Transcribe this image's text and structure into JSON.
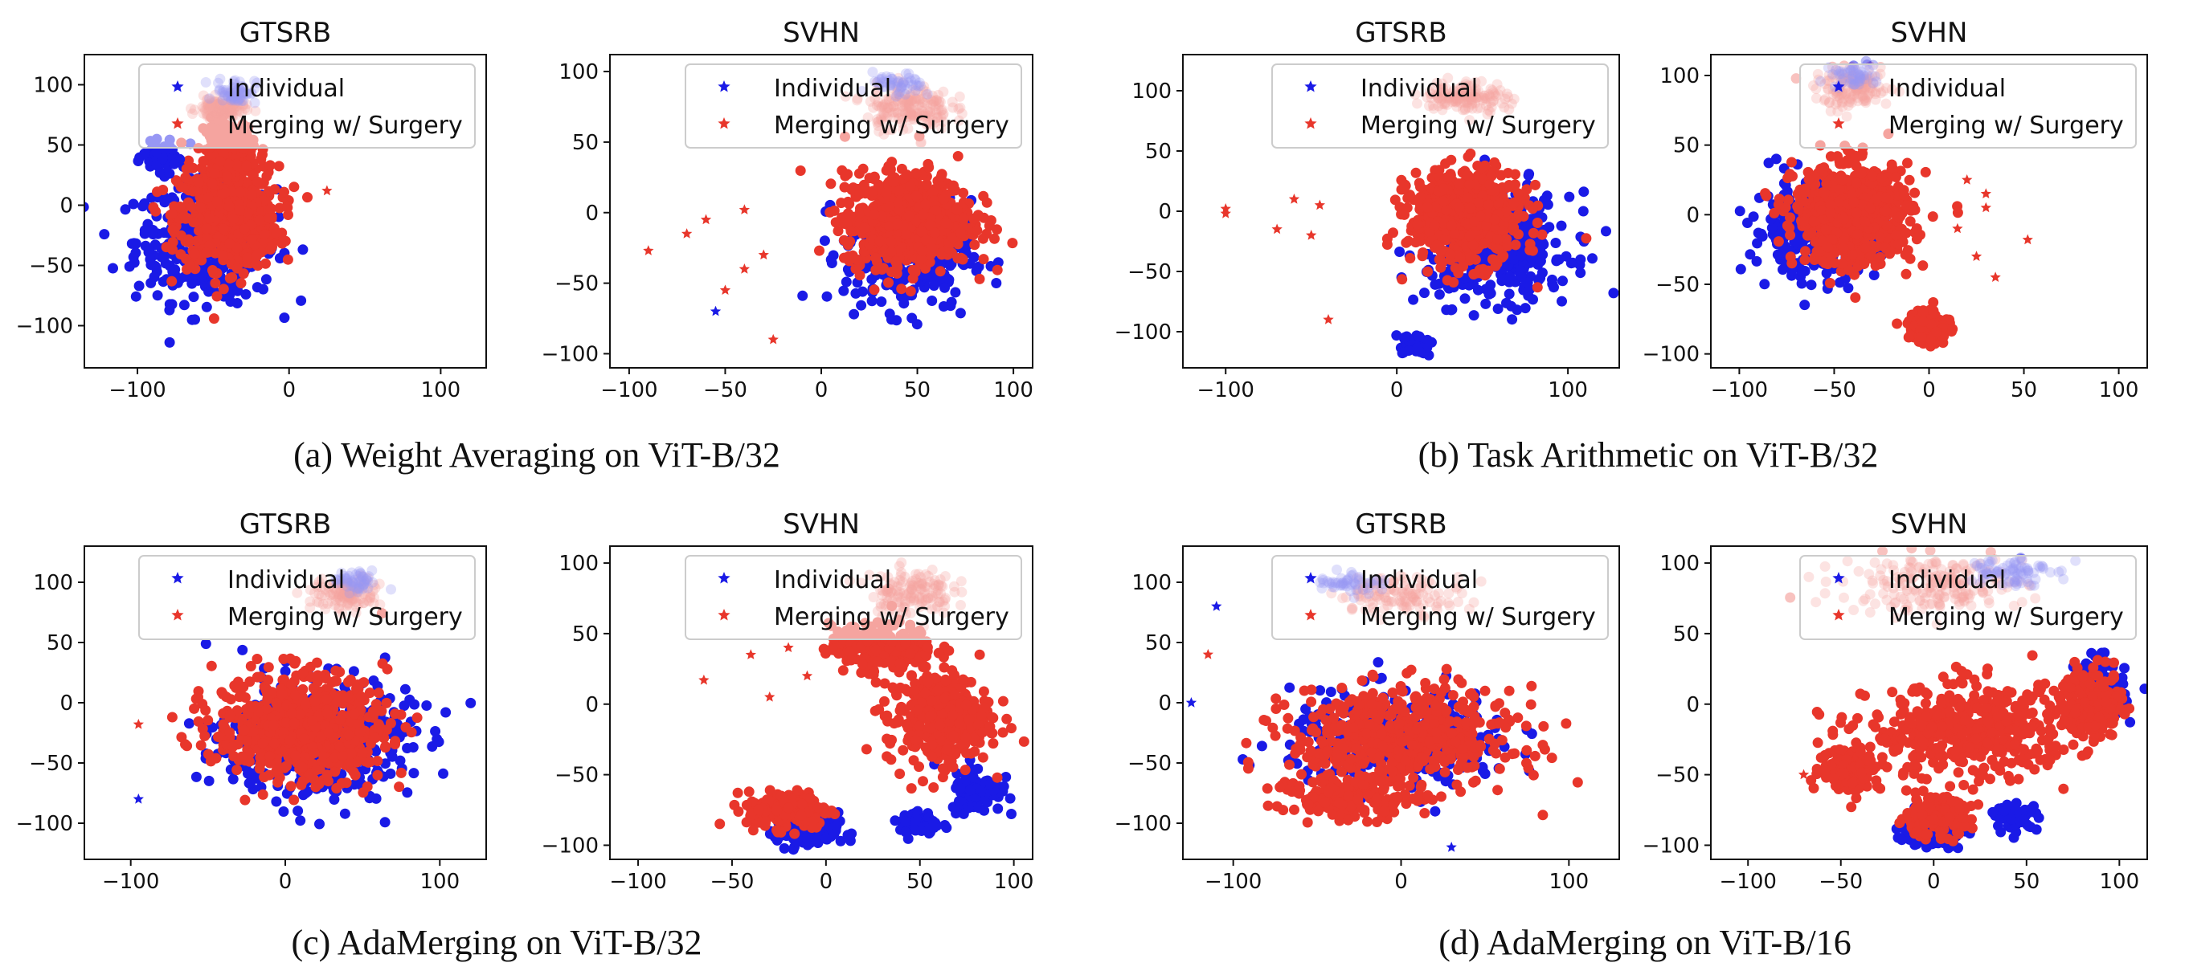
{
  "figure": {
    "captions": [
      "(a) Weight Averaging on ViT-B/32",
      "(b) Task Arithmetic on ViT-B/32",
      "(c) AdaMerging on ViT-B/32",
      "(d) AdaMerging on ViT-B/16"
    ]
  },
  "colors": {
    "individual": "#1a1ae6",
    "merging": "#e8362b"
  },
  "chart_data": [
    {
      "type": "scatter",
      "group": "a",
      "title": "GTSRB",
      "xlim": [
        -135,
        130
      ],
      "ylim": [
        -135,
        125
      ],
      "xticks": [
        -100,
        0,
        100
      ],
      "yticks": [
        -100,
        -50,
        0,
        50,
        100
      ],
      "legend": [
        "Individual",
        "Merging w/ Surgery"
      ],
      "legend_loc": "top-right",
      "clusters": [
        {
          "s": "individual",
          "cx": -55,
          "cy": -30,
          "sx": 42,
          "sy": 45,
          "n": 430
        },
        {
          "s": "merging",
          "cx": -40,
          "cy": -10,
          "sx": 30,
          "sy": 38,
          "n": 620
        },
        {
          "s": "merging",
          "cx": -40,
          "cy": 50,
          "sx": 15,
          "sy": 20,
          "n": 160
        },
        {
          "s": "individual",
          "cx": -85,
          "cy": 40,
          "sx": 10,
          "sy": 10,
          "n": 70
        },
        {
          "s": "merging",
          "cx": -45,
          "cy": 80,
          "sx": 14,
          "sy": 8,
          "n": 120,
          "faded": true
        },
        {
          "s": "individual",
          "cx": -35,
          "cy": 95,
          "sx": 12,
          "sy": 10,
          "n": 60,
          "faded": true
        }
      ],
      "stars": [
        {
          "s": "merging",
          "x": 25,
          "y": 12
        }
      ]
    },
    {
      "type": "scatter",
      "group": "a",
      "title": "SVHN",
      "xlim": [
        -110,
        110
      ],
      "ylim": [
        -110,
        112
      ],
      "xticks": [
        -100,
        -50,
        0,
        50,
        100
      ],
      "yticks": [
        -100,
        -50,
        0,
        50,
        100
      ],
      "legend": [
        "Individual",
        "Merging w/ Surgery"
      ],
      "legend_loc": "top-right",
      "clusters": [
        {
          "s": "individual",
          "cx": 45,
          "cy": -30,
          "sx": 30,
          "sy": 35,
          "n": 300
        },
        {
          "s": "merging",
          "cx": 45,
          "cy": -5,
          "sx": 30,
          "sy": 30,
          "n": 750
        },
        {
          "s": "merging",
          "cx": 45,
          "cy": 75,
          "sx": 20,
          "sy": 15,
          "n": 180,
          "faded": true
        },
        {
          "s": "individual",
          "cx": 40,
          "cy": 90,
          "sx": 12,
          "sy": 8,
          "n": 50,
          "faded": true
        }
      ],
      "stars": [
        {
          "s": "merging",
          "x": -90,
          "y": -27
        },
        {
          "s": "merging",
          "x": -70,
          "y": -15
        },
        {
          "s": "merging",
          "x": -60,
          "y": -5
        },
        {
          "s": "merging",
          "x": -50,
          "y": -55
        },
        {
          "s": "merging",
          "x": -40,
          "y": -40
        },
        {
          "s": "merging",
          "x": -30,
          "y": -30
        },
        {
          "s": "merging",
          "x": -25,
          "y": -90
        },
        {
          "s": "merging",
          "x": -40,
          "y": 2
        },
        {
          "s": "individual",
          "x": -55,
          "y": -70
        }
      ]
    },
    {
      "type": "scatter",
      "group": "b",
      "title": "GTSRB",
      "xlim": [
        -125,
        130
      ],
      "ylim": [
        -130,
        130
      ],
      "xticks": [
        -100,
        0,
        100
      ],
      "yticks": [
        -100,
        -50,
        0,
        50,
        100
      ],
      "legend": [
        "Individual",
        "Merging w/ Surgery"
      ],
      "legend_loc": "top-right",
      "clusters": [
        {
          "s": "individual",
          "cx": 60,
          "cy": -30,
          "sx": 38,
          "sy": 40,
          "n": 420
        },
        {
          "s": "merging",
          "cx": 40,
          "cy": -5,
          "sx": 30,
          "sy": 35,
          "n": 650
        },
        {
          "s": "merging",
          "cx": 40,
          "cy": 95,
          "sx": 22,
          "sy": 12,
          "n": 140,
          "faded": true
        },
        {
          "s": "individual",
          "cx": 10,
          "cy": -110,
          "sx": 10,
          "sy": 8,
          "n": 40
        }
      ],
      "stars": [
        {
          "s": "merging",
          "x": -100,
          "y": 2
        },
        {
          "s": "merging",
          "x": -100,
          "y": -2
        },
        {
          "s": "merging",
          "x": -60,
          "y": 10
        },
        {
          "s": "merging",
          "x": -45,
          "y": 5
        },
        {
          "s": "merging",
          "x": -50,
          "y": -20
        },
        {
          "s": "merging",
          "x": -40,
          "y": -90
        },
        {
          "s": "merging",
          "x": -70,
          "y": -15
        }
      ]
    },
    {
      "type": "scatter",
      "group": "b",
      "title": "SVHN",
      "xlim": [
        -115,
        115
      ],
      "ylim": [
        -110,
        115
      ],
      "xticks": [
        -100,
        -50,
        0,
        50,
        100
      ],
      "yticks": [
        -100,
        -50,
        0,
        50,
        100
      ],
      "legend": [
        "Individual",
        "Merging w/ Surgery"
      ],
      "legend_loc": "top-right",
      "clusters": [
        {
          "s": "individual",
          "cx": -60,
          "cy": -10,
          "sx": 30,
          "sy": 30,
          "n": 330
        },
        {
          "s": "merging",
          "cx": -40,
          "cy": 0,
          "sx": 28,
          "sy": 32,
          "n": 700
        },
        {
          "s": "merging",
          "cx": 0,
          "cy": -80,
          "sx": 10,
          "sy": 12,
          "n": 130
        },
        {
          "s": "merging",
          "cx": -40,
          "cy": 90,
          "sx": 18,
          "sy": 12,
          "n": 140,
          "faded": true
        },
        {
          "s": "individual",
          "cx": -40,
          "cy": 100,
          "sx": 10,
          "sy": 8,
          "n": 50,
          "faded": true
        }
      ],
      "stars": [
        {
          "s": "merging",
          "x": 15,
          "y": -10
        },
        {
          "s": "merging",
          "x": 25,
          "y": -30
        },
        {
          "s": "merging",
          "x": 35,
          "y": -45
        },
        {
          "s": "merging",
          "x": 30,
          "y": 5
        },
        {
          "s": "merging",
          "x": 52,
          "y": -18
        },
        {
          "s": "merging",
          "x": 20,
          "y": 25
        },
        {
          "s": "merging",
          "x": 30,
          "y": 15
        }
      ]
    },
    {
      "type": "scatter",
      "group": "c",
      "title": "GTSRB",
      "xlim": [
        -130,
        130
      ],
      "ylim": [
        -130,
        130
      ],
      "xticks": [
        -100,
        0,
        100
      ],
      "yticks": [
        -100,
        -50,
        0,
        50,
        100
      ],
      "legend": [
        "Individual",
        "Merging w/ Surgery"
      ],
      "legend_loc": "top-right",
      "clusters": [
        {
          "s": "individual",
          "cx": 20,
          "cy": -30,
          "sx": 55,
          "sy": 45,
          "n": 450
        },
        {
          "s": "merging",
          "cx": 10,
          "cy": -20,
          "sx": 50,
          "sy": 40,
          "n": 700
        },
        {
          "s": "merging",
          "cx": 40,
          "cy": 90,
          "sx": 20,
          "sy": 12,
          "n": 120,
          "faded": true
        },
        {
          "s": "individual",
          "cx": 45,
          "cy": 100,
          "sx": 14,
          "sy": 8,
          "n": 50,
          "faded": true
        }
      ],
      "stars": [
        {
          "s": "merging",
          "x": -95,
          "y": -18
        },
        {
          "s": "individual",
          "x": -95,
          "y": -80
        }
      ]
    },
    {
      "type": "scatter",
      "group": "c",
      "title": "SVHN",
      "xlim": [
        -115,
        110
      ],
      "ylim": [
        -110,
        112
      ],
      "xticks": [
        -100,
        -50,
        0,
        50,
        100
      ],
      "yticks": [
        -100,
        -50,
        0,
        50,
        100
      ],
      "legend": [
        "Individual",
        "Merging w/ Surgery"
      ],
      "legend_loc": "top-right",
      "clusters": [
        {
          "s": "individual",
          "cx": -10,
          "cy": -90,
          "sx": 15,
          "sy": 12,
          "n": 150
        },
        {
          "s": "merging",
          "cx": -20,
          "cy": -75,
          "sx": 20,
          "sy": 12,
          "n": 200
        },
        {
          "s": "individual",
          "cx": 80,
          "cy": -60,
          "sx": 12,
          "sy": 15,
          "n": 100
        },
        {
          "s": "merging",
          "cx": 60,
          "cy": -10,
          "sx": 25,
          "sy": 30,
          "n": 350
        },
        {
          "s": "merging",
          "cx": 30,
          "cy": 40,
          "sx": 25,
          "sy": 15,
          "n": 250
        },
        {
          "s": "merging",
          "cx": 45,
          "cy": 80,
          "sx": 20,
          "sy": 15,
          "n": 140,
          "faded": true
        },
        {
          "s": "individual",
          "cx": 50,
          "cy": -85,
          "sx": 10,
          "sy": 8,
          "n": 60
        }
      ],
      "stars": [
        {
          "s": "merging",
          "x": -65,
          "y": 17
        },
        {
          "s": "merging",
          "x": -40,
          "y": 35
        },
        {
          "s": "merging",
          "x": -30,
          "y": 5
        },
        {
          "s": "merging",
          "x": -10,
          "y": 20
        },
        {
          "s": "merging",
          "x": -20,
          "y": 40
        }
      ]
    },
    {
      "type": "scatter",
      "group": "d",
      "title": "GTSRB",
      "xlim": [
        -130,
        130
      ],
      "ylim": [
        -130,
        130
      ],
      "xticks": [
        -100,
        0,
        100
      ],
      "yticks": [
        -100,
        -50,
        0,
        50,
        100
      ],
      "legend": [
        "Individual",
        "Merging w/ Surgery"
      ],
      "legend_loc": "top-right",
      "clusters": [
        {
          "s": "individual",
          "cx": 0,
          "cy": -30,
          "sx": 60,
          "sy": 35,
          "n": 330
        },
        {
          "s": "merging",
          "cx": 0,
          "cy": -30,
          "sx": 60,
          "sy": 38,
          "n": 560
        },
        {
          "s": "merging",
          "cx": -30,
          "cy": -80,
          "sx": 35,
          "sy": 15,
          "n": 160
        },
        {
          "s": "merging",
          "cx": 0,
          "cy": 90,
          "sx": 35,
          "sy": 14,
          "n": 120,
          "faded": true
        },
        {
          "s": "individual",
          "cx": -30,
          "cy": 100,
          "sx": 18,
          "sy": 8,
          "n": 50,
          "faded": true
        }
      ],
      "stars": [
        {
          "s": "individual",
          "x": -125,
          "y": 0
        },
        {
          "s": "individual",
          "x": -110,
          "y": 80
        },
        {
          "s": "individual",
          "x": 30,
          "y": -120
        },
        {
          "s": "merging",
          "x": -115,
          "y": 40
        }
      ]
    },
    {
      "type": "scatter",
      "group": "d",
      "title": "SVHN",
      "xlim": [
        -120,
        115
      ],
      "ylim": [
        -110,
        112
      ],
      "xticks": [
        -100,
        -50,
        0,
        50,
        100
      ],
      "yticks": [
        -100,
        -50,
        0,
        50,
        100
      ],
      "legend": [
        "Individual",
        "Merging w/ Surgery"
      ],
      "legend_loc": "top-right",
      "clusters": [
        {
          "s": "individual",
          "cx": 0,
          "cy": -90,
          "sx": 15,
          "sy": 10,
          "n": 150
        },
        {
          "s": "merging",
          "cx": 0,
          "cy": -80,
          "sx": 18,
          "sy": 12,
          "n": 180
        },
        {
          "s": "individual",
          "cx": 45,
          "cy": -80,
          "sx": 10,
          "sy": 8,
          "n": 60
        },
        {
          "s": "merging",
          "cx": -45,
          "cy": -45,
          "sx": 15,
          "sy": 15,
          "n": 150
        },
        {
          "s": "merging",
          "cx": 20,
          "cy": -20,
          "sx": 50,
          "sy": 30,
          "n": 450
        },
        {
          "s": "individual",
          "cx": 90,
          "cy": 10,
          "sx": 12,
          "sy": 20,
          "n": 120
        },
        {
          "s": "merging",
          "cx": 85,
          "cy": 0,
          "sx": 15,
          "sy": 22,
          "n": 200
        },
        {
          "s": "merging",
          "cx": 0,
          "cy": 85,
          "sx": 45,
          "sy": 18,
          "n": 200,
          "faded": true
        },
        {
          "s": "individual",
          "cx": 40,
          "cy": 95,
          "sx": 20,
          "sy": 10,
          "n": 80,
          "faded": true
        }
      ],
      "stars": [
        {
          "s": "merging",
          "x": -70,
          "y": -50
        }
      ]
    }
  ]
}
